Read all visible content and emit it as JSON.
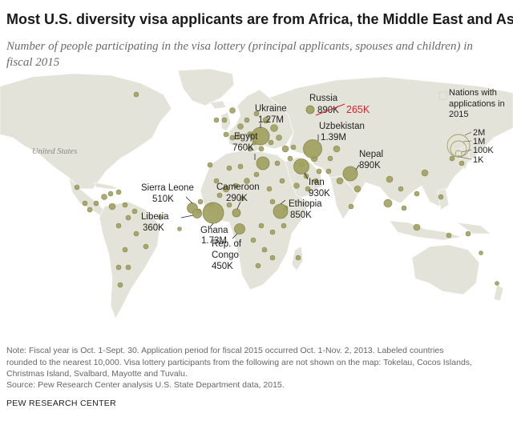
{
  "title": "Most U.S. diversity visa applicants are from Africa, the Middle East and Asia",
  "subtitle": "Number of people participating in the visa lottery (principal applicants, spouses and children) in fiscal 2015",
  "map": {
    "us_label": "United States",
    "callouts": [
      {
        "key": "russia",
        "lines": [
          "Russia",
          "890K"
        ],
        "correction": "265K",
        "correction_color": "#d9232a"
      },
      {
        "key": "ukraine",
        "lines": [
          "Ukraine",
          "1.27M"
        ]
      },
      {
        "key": "uzbekistan",
        "lines": [
          "Uzbekistan",
          "1.39M"
        ]
      },
      {
        "key": "nepal",
        "lines": [
          "Nepal",
          "890K"
        ]
      },
      {
        "key": "egypt",
        "lines": [
          "Egypt",
          "760K"
        ]
      },
      {
        "key": "iran",
        "lines": [
          "Iran",
          "930K"
        ]
      },
      {
        "key": "sierra-leone",
        "lines": [
          "Sierra Leone",
          "510K"
        ]
      },
      {
        "key": "cameroon",
        "lines": [
          "Cameroon",
          "290K"
        ]
      },
      {
        "key": "ethiopia",
        "lines": [
          "Ethiopia",
          "850K"
        ]
      },
      {
        "key": "liberia",
        "lines": [
          "Liberia",
          "360K"
        ]
      },
      {
        "key": "ghana",
        "lines": [
          "Ghana",
          "1.73M"
        ]
      },
      {
        "key": "rep-of-congo",
        "lines": [
          "Rep. of",
          "Congo",
          "450K"
        ]
      }
    ],
    "legend": {
      "nations_label": "Nations with applications in 2015",
      "sizes": [
        "2M",
        "1M",
        "100K",
        "1K"
      ]
    },
    "colors": {
      "land": "#e4e3d9",
      "bubble_fill": "#a2a160",
      "bubble_stroke": "#7f7e45",
      "strike": "#d9232a"
    }
  },
  "note": {
    "lines": [
      "Note: Fiscal year is Oct. 1-Sept. 30. Application period for fiscal 2015 occurred Oct. 1-Nov. 2, 2013. Labeled countries",
      "rounded to the nearest 10,000. Visa lottery participants from the following are not shown on the map: Tokelau, Cocos Islands,",
      "Christmas Island, Svalbard, Mayotte and Tuvalu."
    ]
  },
  "source": "Source: Pew Research Center analysis U.S. State Department data, 2015.",
  "brand": "PEW RESEARCH CENTER"
}
